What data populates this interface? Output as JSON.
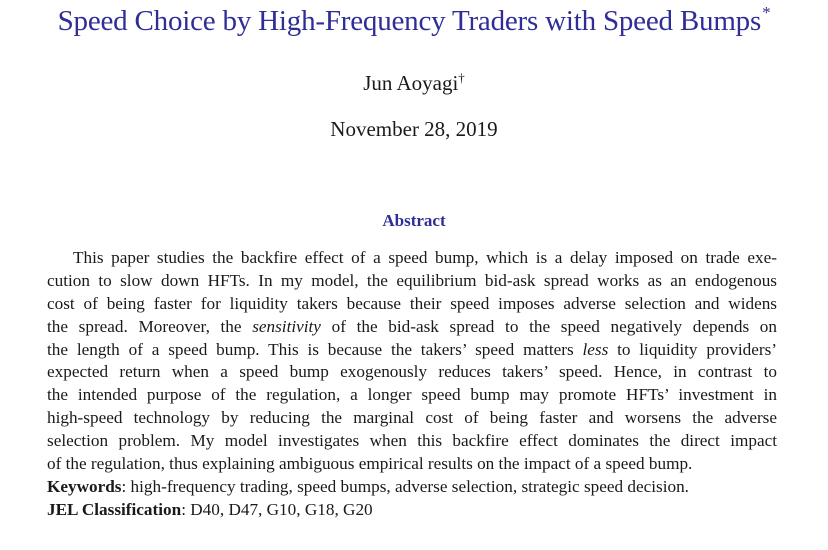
{
  "paper": {
    "title": "Speed Choice by High-Frequency Traders with Speed Bumps",
    "title_mark": "*",
    "author": "Jun Aoyagi",
    "author_mark": "†",
    "date": "November 28, 2019"
  },
  "abstract": {
    "heading": "Abstract",
    "lines": [
      "This paper studies the backfire effect of a speed bump, which is a delay imposed on trade exe-",
      "cution to slow down HFTs. In my model, the equilibrium bid-ask spread works as an endogenous",
      "cost of being faster for liquidity takers because their speed imposes adverse selection and widens"
    ],
    "line4": "the spread.  Moreover, the ",
    "line4_em": "sensitivity",
    "line4_post": " of the bid-ask spread to the speed negatively depends on",
    "line5_pre": "the length of a speed bump.  This is because the takers’ speed matters ",
    "line5_em": "less",
    "line5_post": " to liquidity providers’",
    "lines_rest": [
      "expected return when a speed bump exogenously reduces takers’ speed.  Hence, in contrast to",
      "the intended purpose of the regulation, a longer speed bump may promote HFTs’ investment in",
      "high-speed technology by reducing the marginal cost of being faster and worsens the adverse",
      "selection problem.  My model investigates when this backfire effect dominates the direct impact",
      "of the regulation, thus explaining ambiguous empirical results on the impact of a speed bump."
    ]
  },
  "keywords": {
    "label": "Keywords",
    "text": ": high-frequency trading, speed bumps, adverse selection, strategic speed decision."
  },
  "jel": {
    "label": "JEL Classification",
    "text": ": D40, D47, G10, G18, G20"
  }
}
